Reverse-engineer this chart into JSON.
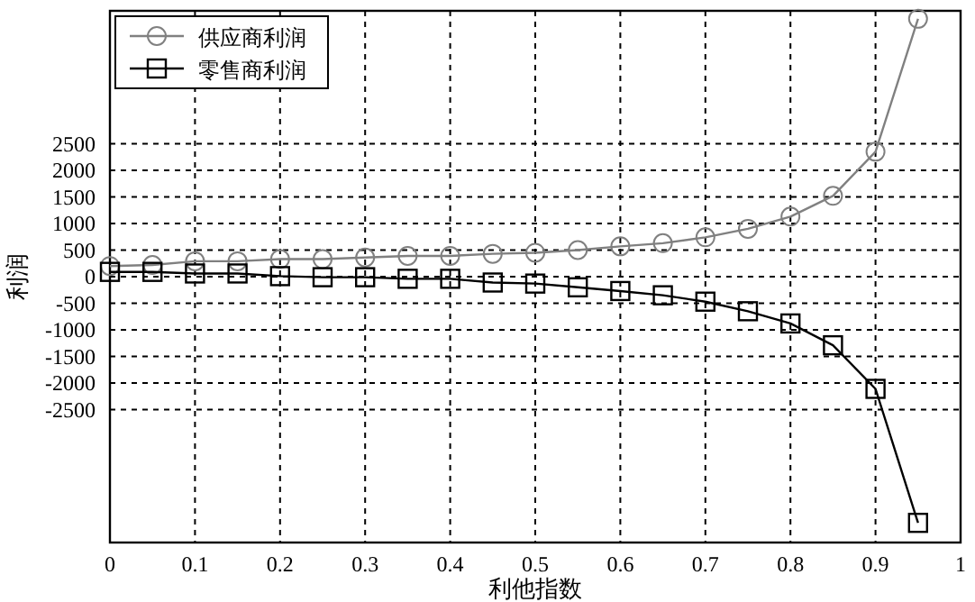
{
  "chart_data": {
    "type": "line",
    "xlabel": "利他指数",
    "ylabel": "利润",
    "x": [
      0,
      0.05,
      0.1,
      0.15,
      0.2,
      0.25,
      0.3,
      0.35,
      0.4,
      0.45,
      0.5,
      0.55,
      0.6,
      0.65,
      0.7,
      0.75,
      0.8,
      0.85,
      0.9,
      0.95
    ],
    "series": [
      {
        "name": "供应商利润",
        "color": "#808080",
        "marker": "circle",
        "values": [
          200,
          220,
          290,
          290,
          330,
          330,
          360,
          390,
          390,
          430,
          450,
          500,
          570,
          630,
          740,
          900,
          1130,
          1520,
          2350,
          4850
        ]
      },
      {
        "name": "零售商利润",
        "color": "#000000",
        "marker": "square",
        "values": [
          90,
          90,
          60,
          60,
          10,
          -10,
          -10,
          -40,
          -40,
          -110,
          -130,
          -200,
          -270,
          -350,
          -470,
          -650,
          -880,
          -1290,
          -2110,
          -4630
        ]
      }
    ],
    "xlim": [
      0,
      1
    ],
    "xticks": [
      0,
      0.1,
      0.2,
      0.3,
      0.4,
      0.5,
      0.6,
      0.7,
      0.8,
      0.9,
      1
    ],
    "ylim": [
      -5000,
      5000
    ],
    "yticks": [
      -2500,
      -2000,
      -1500,
      -1000,
      -500,
      0,
      500,
      1000,
      1500,
      2000,
      2500
    ],
    "grid": true,
    "legend": "top left",
    "line_style": "solid"
  }
}
